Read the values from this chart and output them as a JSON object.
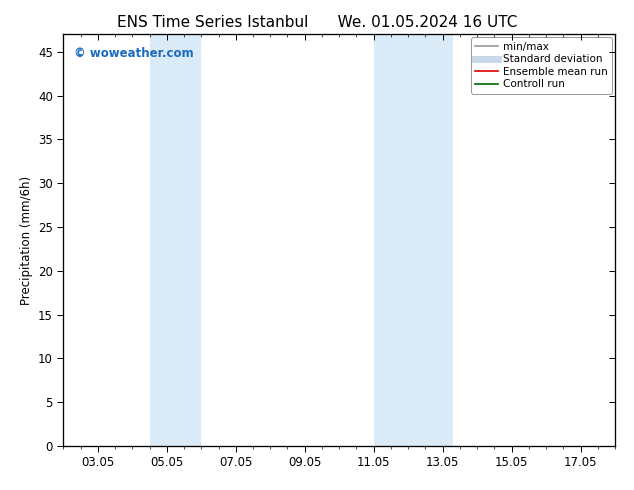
{
  "title_left": "ENS Time Series Istanbul",
  "title_right": "We. 01.05.2024 16 UTC",
  "ylabel": "Precipitation (mm/6h)",
  "ylim": [
    0,
    47
  ],
  "yticks": [
    0,
    5,
    10,
    15,
    20,
    25,
    30,
    35,
    40,
    45
  ],
  "xtick_labels": [
    "03.05",
    "05.05",
    "07.05",
    "09.05",
    "11.05",
    "13.05",
    "15.05",
    "17.05"
  ],
  "xtick_positions": [
    3,
    5,
    7,
    9,
    11,
    13,
    15,
    17
  ],
  "xmin": 2.0,
  "xmax": 18.0,
  "shaded_regions": [
    {
      "xmin": 4.5,
      "xmax": 6.0,
      "color": "#daeaf7"
    },
    {
      "xmin": 11.0,
      "xmax": 13.3,
      "color": "#daeaf7"
    }
  ],
  "watermark": "© woweather.com",
  "watermark_color": "#1a6abf",
  "background_color": "#ffffff",
  "legend_items": [
    {
      "label": "min/max",
      "color": "#999999",
      "lw": 1.2,
      "type": "line"
    },
    {
      "label": "Standard deviation",
      "color": "#c8d8e8",
      "lw": 5,
      "type": "line"
    },
    {
      "label": "Ensemble mean run",
      "color": "#dd0000",
      "lw": 1.2,
      "type": "line"
    },
    {
      "label": "Controll run",
      "color": "#006600",
      "lw": 1.2,
      "type": "line"
    }
  ],
  "title_fontsize": 11,
  "label_fontsize": 8.5,
  "tick_fontsize": 8.5,
  "legend_fontsize": 7.5
}
